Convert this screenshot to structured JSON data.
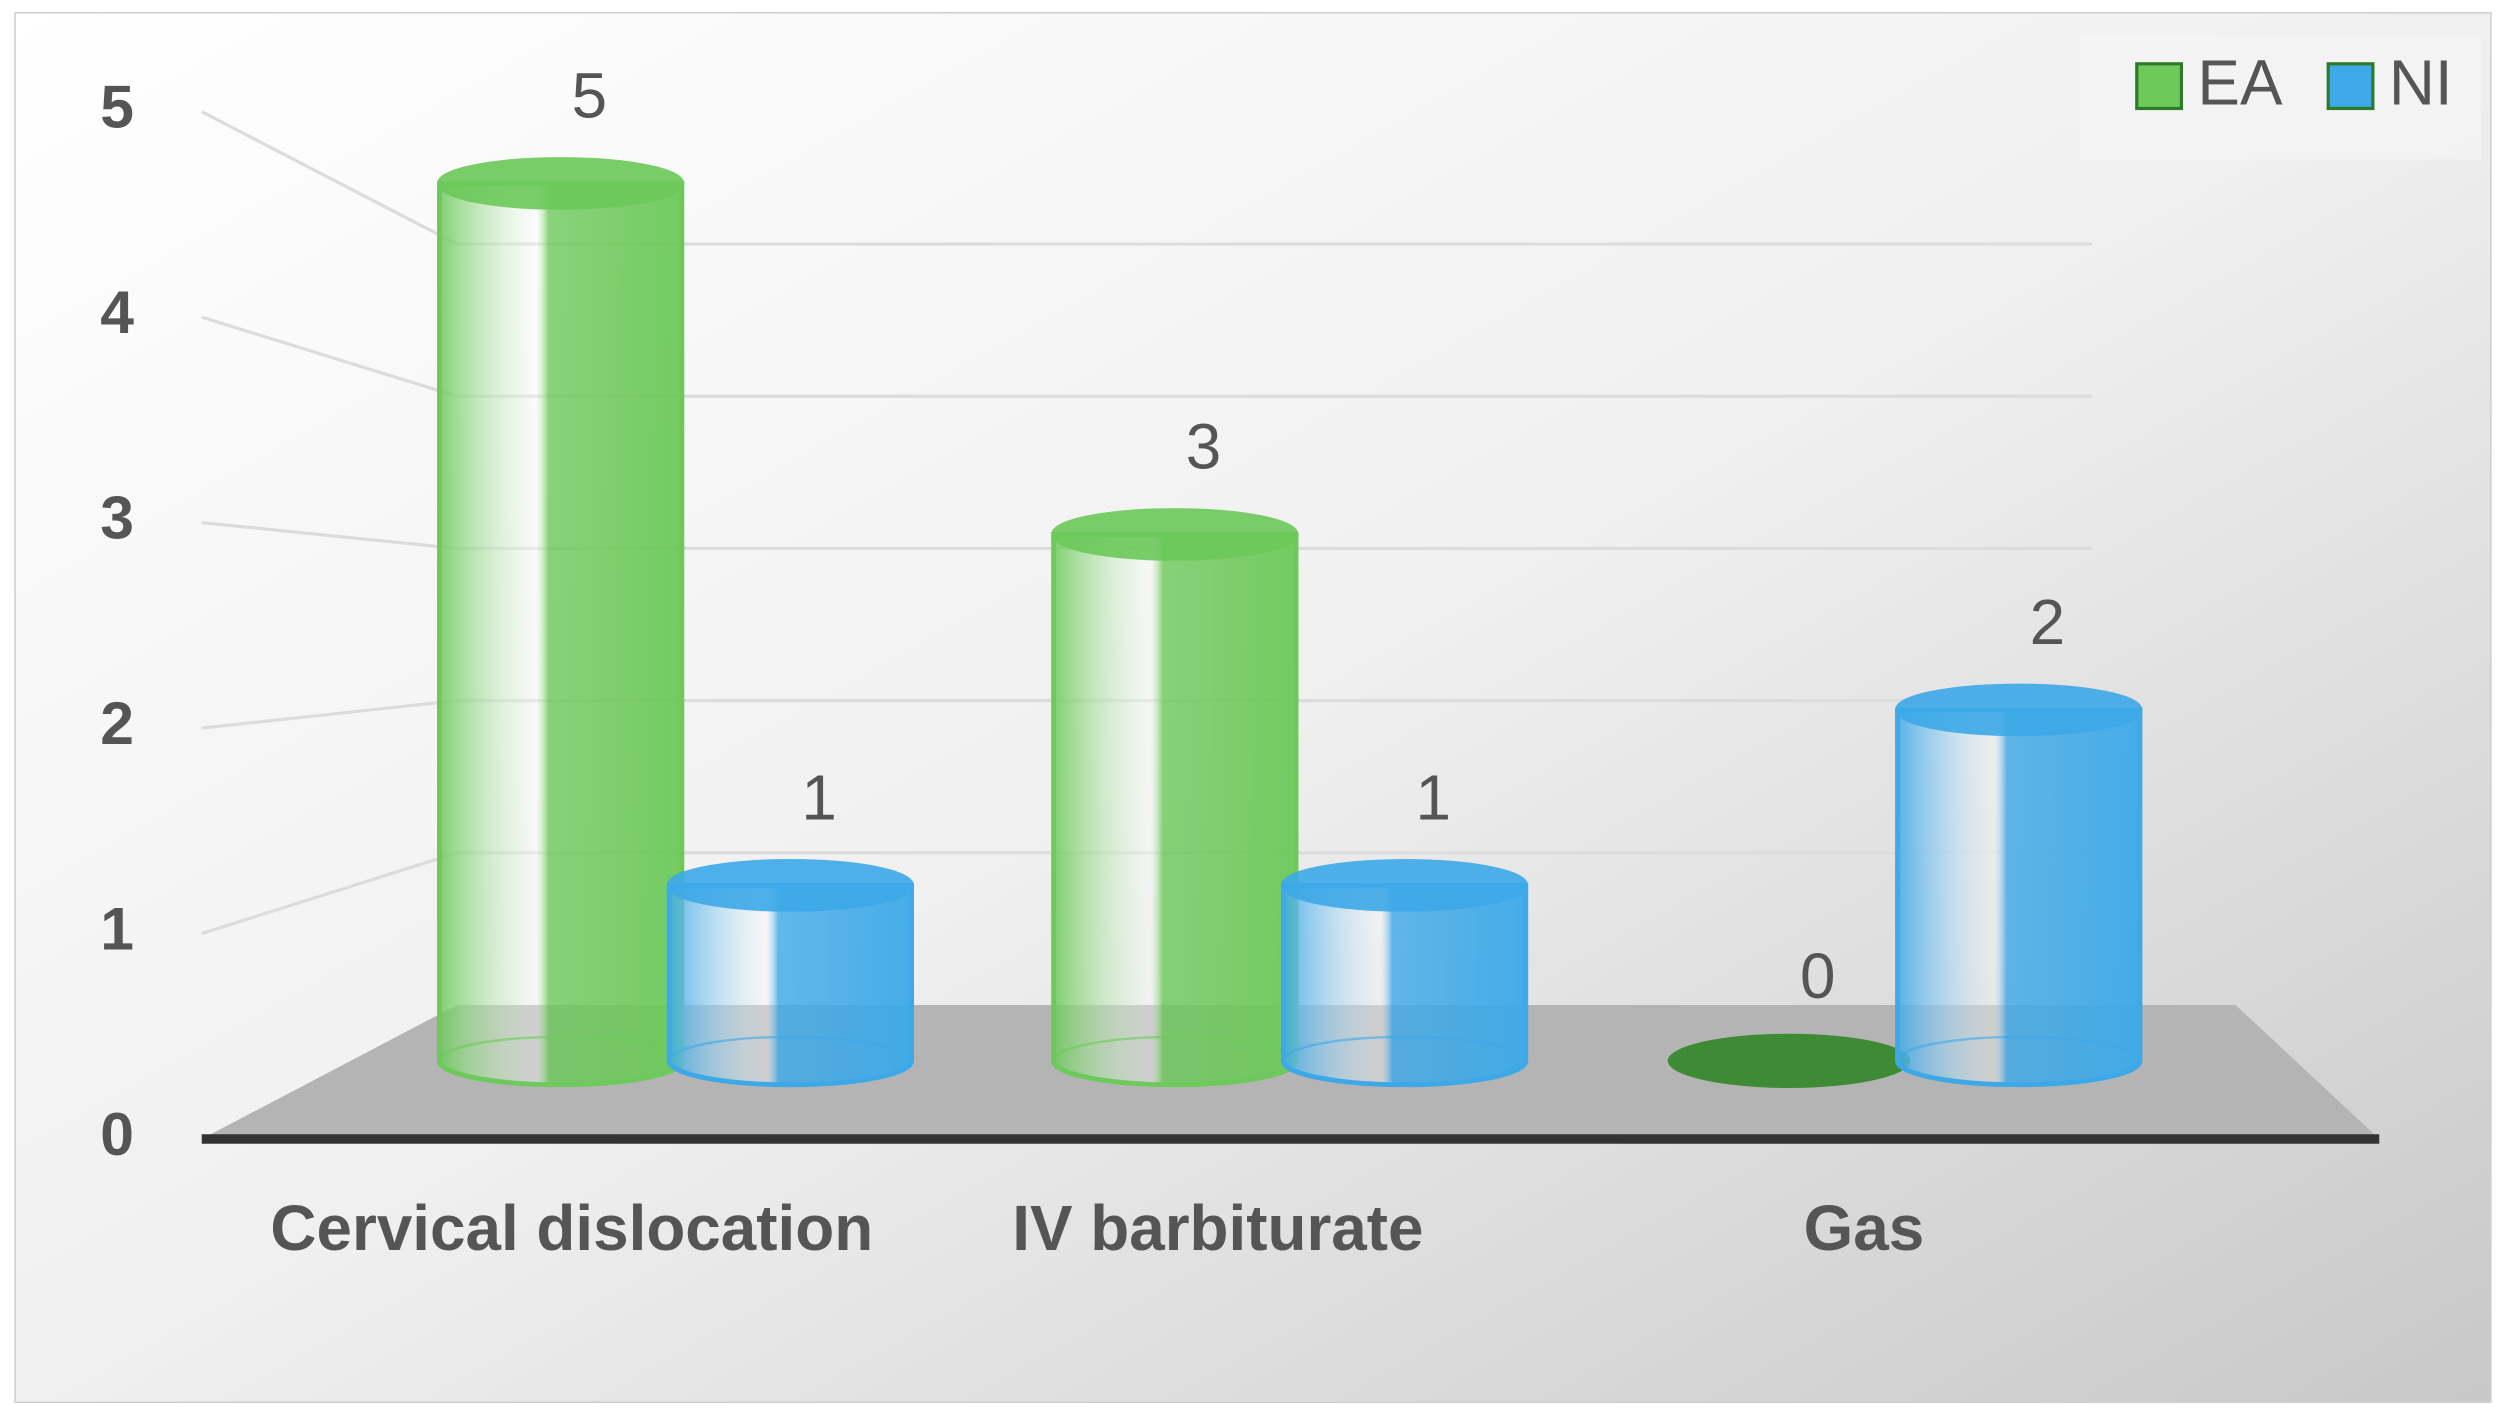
{
  "chart_data": {
    "type": "bar3d",
    "categories": [
      "Cervical dislocation",
      "IV barbiturate",
      "Gas"
    ],
    "series": [
      {
        "name": "EA",
        "color": "#6cc95a",
        "values": [
          5,
          3,
          0
        ]
      },
      {
        "name": "NI",
        "color": "#3da9e8",
        "values": [
          1,
          1,
          2
        ]
      }
    ],
    "ylim": [
      0,
      5
    ],
    "yticks": [
      0,
      1,
      2,
      3,
      4,
      5
    ],
    "grid": true,
    "legend": "top-right"
  }
}
